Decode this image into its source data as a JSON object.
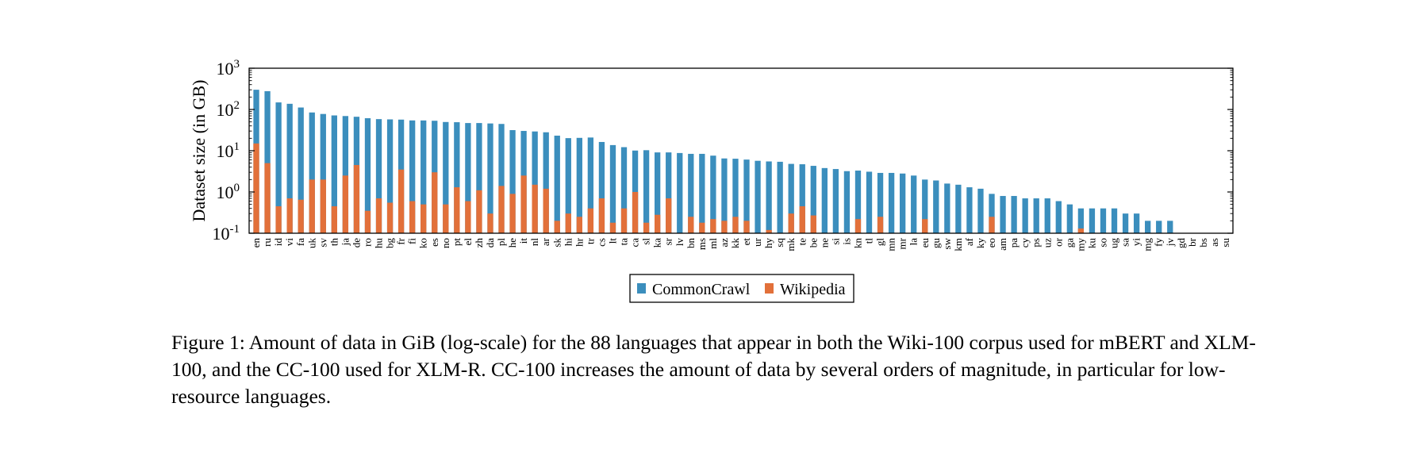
{
  "chart_data": {
    "type": "bar",
    "stacked": false,
    "overlay": true,
    "log_scale_y": true,
    "ylabel": "Dataset size (in GB)",
    "ylim": [
      0.1,
      1000
    ],
    "y_ticks": [
      {
        "value": 0.1,
        "base": "10",
        "exp": "-1"
      },
      {
        "value": 1,
        "base": "10",
        "exp": "0"
      },
      {
        "value": 10,
        "base": "10",
        "exp": "1"
      },
      {
        "value": 100,
        "base": "10",
        "exp": "2"
      },
      {
        "value": 1000,
        "base": "10",
        "exp": "3"
      }
    ],
    "grid": false,
    "legend_position": "bottom-center",
    "categories": [
      "en",
      "ru",
      "id",
      "vi",
      "fa",
      "uk",
      "sv",
      "th",
      "ja",
      "de",
      "ro",
      "hu",
      "bg",
      "fr",
      "fi",
      "ko",
      "es",
      "no",
      "pt",
      "el",
      "zh",
      "da",
      "pl",
      "he",
      "it",
      "nl",
      "ar",
      "sk",
      "hi",
      "hr",
      "tr",
      "cs",
      "lt",
      "ta",
      "ca",
      "sl",
      "ka",
      "sr",
      "lv",
      "bn",
      "ms",
      "ml",
      "az",
      "kk",
      "et",
      "ur",
      "hy",
      "sq",
      "mk",
      "te",
      "be",
      "ne",
      "si",
      "is",
      "kn",
      "tl",
      "gl",
      "mn",
      "mr",
      "la",
      "eu",
      "gu",
      "sw",
      "km",
      "af",
      "ky",
      "eo",
      "am",
      "pa",
      "cy",
      "ps",
      "uz",
      "or",
      "ga",
      "my",
      "ku",
      "so",
      "ug",
      "sa",
      "yi",
      "mg",
      "fy",
      "jv",
      "gd",
      "br",
      "bs",
      "as",
      "su"
    ],
    "series": [
      {
        "name": "CommonCrawl",
        "color": "#3b8ebd",
        "values": [
          300.8,
          278.0,
          148.3,
          137.3,
          111.6,
          84.6,
          77.8,
          71.7,
          69.3,
          66.6,
          61.4,
          58.4,
          57.5,
          56.8,
          54.3,
          54.2,
          53.3,
          49.7,
          49.1,
          46.9,
          46.9,
          45.8,
          44.6,
          31.6,
          30.2,
          29.3,
          28.0,
          23.2,
          20.2,
          20.5,
          20.9,
          16.3,
          13.7,
          12.2,
          10.1,
          10.3,
          9.1,
          9.1,
          8.8,
          8.4,
          8.4,
          7.6,
          6.5,
          6.4,
          6.1,
          5.7,
          5.5,
          5.4,
          4.8,
          4.7,
          4.3,
          3.8,
          3.6,
          3.2,
          3.3,
          3.1,
          2.9,
          2.9,
          2.8,
          2.5,
          2.0,
          1.9,
          1.6,
          1.5,
          1.3,
          1.2,
          0.9,
          0.8,
          0.8,
          0.7,
          0.7,
          0.7,
          0.6,
          0.5,
          0.4,
          0.4,
          0.4,
          0.4,
          0.3,
          0.3,
          0.2,
          0.2,
          0.2,
          0.1,
          0.0,
          0.0,
          0.0,
          0.0
        ]
      },
      {
        "name": "Wikipedia",
        "color": "#e2703a",
        "values": [
          15.0,
          5.0,
          0.45,
          0.7,
          0.65,
          2.0,
          2.0,
          0.45,
          2.5,
          4.5,
          0.35,
          0.7,
          0.55,
          3.5,
          0.6,
          0.5,
          3.0,
          0.5,
          1.3,
          0.6,
          1.1,
          0.3,
          1.4,
          0.9,
          2.5,
          1.5,
          1.2,
          0.2,
          0.3,
          0.25,
          0.4,
          0.7,
          0.18,
          0.4,
          1.0,
          0.18,
          0.28,
          0.7,
          0.0,
          0.25,
          0.18,
          0.22,
          0.2,
          0.25,
          0.2,
          0.08,
          0.12,
          0.0,
          0.3,
          0.45,
          0.27,
          0.08,
          0.0,
          0.0,
          0.22,
          0.0,
          0.25,
          0.0,
          0.0,
          0.0,
          0.22,
          0.0,
          0.0,
          0.0,
          0.0,
          0.0,
          0.25,
          0.0,
          0.0,
          0.0,
          0.0,
          0.0,
          0.0,
          0.0,
          0.13,
          0.0,
          0.0,
          0.0,
          0.0,
          0.0,
          0.0,
          0.0,
          0.0,
          0.0,
          0.0,
          0.0,
          0.0,
          0.0
        ]
      }
    ]
  },
  "caption": "Figure 1: Amount of data in GiB (log-scale) for the 88 languages that appear in both the Wiki-100 corpus used for mBERT and XLM-100, and the CC-100 used for XLM-R. CC-100 increases the amount of data by several orders of magnitude, in particular for low-resource languages."
}
